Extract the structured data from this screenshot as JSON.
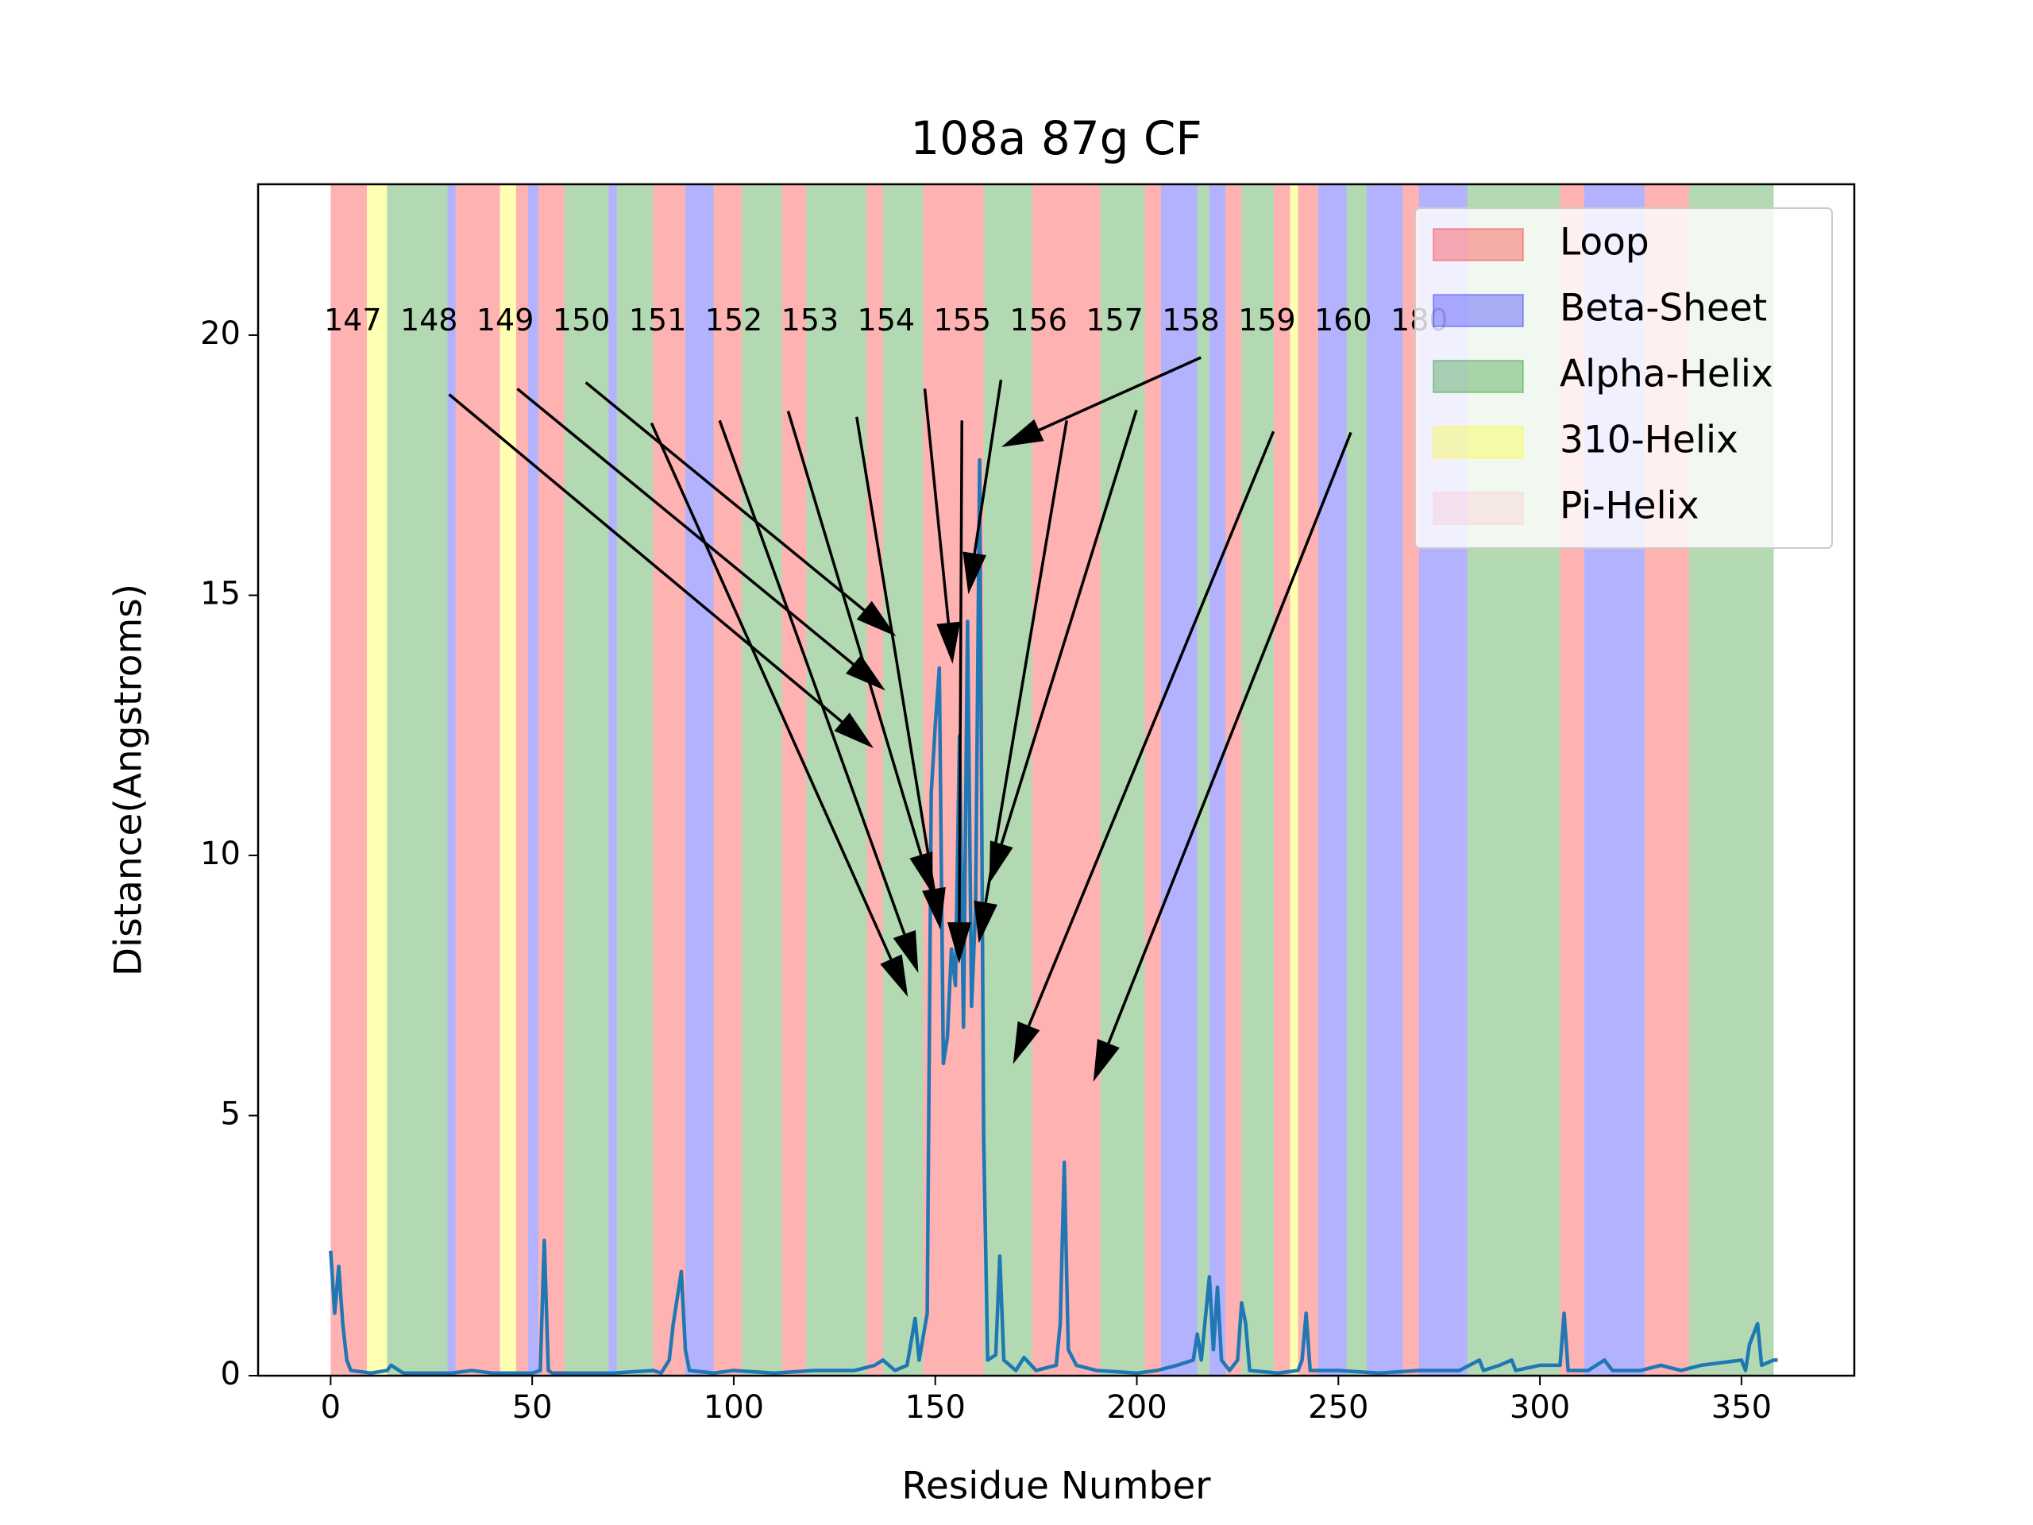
{
  "chart_data": {
    "type": "line",
    "title": "108a 87g CF",
    "x_label": "Residue Number",
    "y_label": "Distance(Angstroms)",
    "xlim": [
      -18,
      378
    ],
    "ylim": [
      0,
      22.9
    ],
    "xticks": [
      0,
      50,
      100,
      150,
      200,
      250,
      300,
      350
    ],
    "yticks": [
      0,
      5,
      10,
      15,
      20
    ],
    "legend_position": "upper right",
    "legend": [
      {
        "name": "Loop",
        "color": "#ff0000"
      },
      {
        "name": "Beta-Sheet",
        "color": "#0000ff"
      },
      {
        "name": "Alpha-Helix",
        "color": "#008000"
      },
      {
        "name": "310-Helix",
        "color": "#ffff00"
      },
      {
        "name": "Pi-Helix",
        "color": "#ffc0cb"
      }
    ],
    "span_alpha": 0.3,
    "spans": [
      {
        "start": 0,
        "end": 9,
        "structure": 0
      },
      {
        "start": 9,
        "end": 14,
        "structure": 3
      },
      {
        "start": 14,
        "end": 29,
        "structure": 2
      },
      {
        "start": 29,
        "end": 31,
        "structure": 1
      },
      {
        "start": 31,
        "end": 42,
        "structure": 0
      },
      {
        "start": 42,
        "end": 46,
        "structure": 3
      },
      {
        "start": 46,
        "end": 49,
        "structure": 0
      },
      {
        "start": 49,
        "end": 51.5,
        "structure": 1
      },
      {
        "start": 51.5,
        "end": 58,
        "structure": 0
      },
      {
        "start": 58,
        "end": 69,
        "structure": 2
      },
      {
        "start": 69,
        "end": 71,
        "structure": 1
      },
      {
        "start": 71,
        "end": 80,
        "structure": 2
      },
      {
        "start": 80,
        "end": 88,
        "structure": 0
      },
      {
        "start": 88,
        "end": 95,
        "structure": 1
      },
      {
        "start": 95,
        "end": 102,
        "structure": 0
      },
      {
        "start": 102,
        "end": 112,
        "structure": 2
      },
      {
        "start": 112,
        "end": 118,
        "structure": 0
      },
      {
        "start": 118,
        "end": 133,
        "structure": 2
      },
      {
        "start": 133,
        "end": 137,
        "structure": 0
      },
      {
        "start": 137,
        "end": 147,
        "structure": 2
      },
      {
        "start": 147,
        "end": 162,
        "structure": 0
      },
      {
        "start": 162,
        "end": 174,
        "structure": 2
      },
      {
        "start": 174,
        "end": 191,
        "structure": 0
      },
      {
        "start": 191,
        "end": 202,
        "structure": 2
      },
      {
        "start": 202,
        "end": 206,
        "structure": 0
      },
      {
        "start": 206,
        "end": 215,
        "structure": 1
      },
      {
        "start": 215,
        "end": 218,
        "structure": 2
      },
      {
        "start": 218,
        "end": 222,
        "structure": 1
      },
      {
        "start": 222,
        "end": 226,
        "structure": 0
      },
      {
        "start": 226,
        "end": 234,
        "structure": 2
      },
      {
        "start": 234,
        "end": 238,
        "structure": 0
      },
      {
        "start": 238,
        "end": 240,
        "structure": 3
      },
      {
        "start": 240,
        "end": 245,
        "structure": 0
      },
      {
        "start": 245,
        "end": 252,
        "structure": 1
      },
      {
        "start": 252,
        "end": 257,
        "structure": 2
      },
      {
        "start": 257,
        "end": 266,
        "structure": 1
      },
      {
        "start": 266,
        "end": 270,
        "structure": 0
      },
      {
        "start": 270,
        "end": 282,
        "structure": 1
      },
      {
        "start": 282,
        "end": 305,
        "structure": 2
      },
      {
        "start": 305,
        "end": 311,
        "structure": 0
      },
      {
        "start": 311,
        "end": 326,
        "structure": 1
      },
      {
        "start": 326,
        "end": 337,
        "structure": 0
      },
      {
        "start": 337,
        "end": 358,
        "structure": 2
      }
    ],
    "series": [
      {
        "name": "Distance",
        "color": "#1f77b4",
        "x": [
          0,
          1,
          2,
          3,
          4,
          5,
          10,
          14,
          15,
          16,
          18,
          30,
          35,
          40,
          50,
          52,
          53,
          54,
          55,
          60,
          70,
          80,
          82,
          84,
          85,
          87,
          88,
          89,
          95,
          100,
          110,
          120,
          130,
          135,
          137,
          140,
          143,
          145,
          146,
          148,
          149,
          150,
          151,
          152,
          153,
          154,
          155,
          156,
          157,
          158,
          159,
          160,
          161,
          162,
          163,
          165,
          166,
          167,
          170,
          172,
          175,
          180,
          181,
          182,
          183,
          185,
          190,
          200,
          205,
          210,
          214,
          215,
          216,
          218,
          219,
          220,
          221,
          223,
          225,
          226,
          227,
          228,
          235,
          240,
          241,
          242,
          243,
          250,
          260,
          270,
          280,
          285,
          286,
          290,
          293,
          294,
          300,
          305,
          306,
          307,
          312,
          316,
          318,
          325,
          330,
          335,
          340,
          350,
          351,
          352,
          354,
          355,
          358,
          359
        ],
        "values": [
          2.4,
          1.2,
          2.1,
          1.0,
          0.3,
          0.1,
          0.05,
          0.1,
          0.2,
          0.15,
          0.05,
          0.05,
          0.1,
          0.05,
          0.05,
          0.1,
          2.6,
          0.1,
          0.05,
          0.05,
          0.05,
          0.1,
          0.05,
          0.3,
          1.0,
          2.0,
          0.5,
          0.1,
          0.05,
          0.1,
          0.05,
          0.1,
          0.1,
          0.2,
          0.3,
          0.1,
          0.2,
          1.1,
          0.3,
          1.2,
          11.2,
          12.5,
          13.6,
          6.0,
          6.5,
          8.2,
          7.5,
          12.3,
          6.7,
          14.5,
          7.1,
          9.0,
          17.6,
          4.6,
          0.3,
          0.4,
          2.3,
          0.3,
          0.1,
          0.35,
          0.1,
          0.2,
          1.0,
          4.1,
          0.5,
          0.2,
          0.1,
          0.05,
          0.1,
          0.2,
          0.3,
          0.8,
          0.3,
          1.9,
          0.5,
          1.7,
          0.3,
          0.1,
          0.3,
          1.4,
          1.0,
          0.1,
          0.05,
          0.1,
          0.3,
          1.2,
          0.1,
          0.1,
          0.05,
          0.1,
          0.1,
          0.3,
          0.1,
          0.2,
          0.3,
          0.1,
          0.2,
          0.2,
          1.2,
          0.1,
          0.1,
          0.3,
          0.1,
          0.1,
          0.2,
          0.1,
          0.2,
          0.3,
          0.1,
          0.6,
          1.0,
          0.2,
          0.3,
          0.3
        ]
      }
    ],
    "annotations": [
      {
        "text": "147",
        "text_x": 5.5,
        "text_y": 20.25,
        "xytext": [
          29.4,
          18.86
        ],
        "xy": [
          134.7,
          12.06
        ]
      },
      {
        "text": "148",
        "text_x": 24.4,
        "text_y": 20.25,
        "xytext": [
          46.3,
          18.97
        ],
        "xy": [
          137.6,
          13.17
        ]
      },
      {
        "text": "149",
        "text_x": 43.3,
        "text_y": 20.25,
        "xytext": [
          63.3,
          19.09
        ],
        "xy": [
          140.3,
          14.21
        ]
      },
      {
        "text": "150",
        "text_x": 62.2,
        "text_y": 20.25,
        "xytext": [
          79.6,
          18.31
        ],
        "xy": [
          143.2,
          7.28
        ]
      },
      {
        "text": "151",
        "text_x": 81.1,
        "text_y": 20.25,
        "xytext": [
          96.5,
          18.36
        ],
        "xy": [
          145.8,
          7.74
        ]
      },
      {
        "text": "152",
        "text_x": 100,
        "text_y": 20.25,
        "xytext": [
          113.5,
          18.54
        ],
        "xy": [
          149.4,
          9.25
        ]
      },
      {
        "text": "153",
        "text_x": 118.9,
        "text_y": 20.25,
        "xytext": [
          130.5,
          18.43
        ],
        "xy": [
          151.3,
          8.57
        ]
      },
      {
        "text": "154",
        "text_x": 137.8,
        "text_y": 20.25,
        "xytext": [
          147.4,
          18.97
        ],
        "xy": [
          154.3,
          13.68
        ]
      },
      {
        "text": "155",
        "text_x": 156.7,
        "text_y": 20.25,
        "xytext": [
          156.6,
          18.36
        ],
        "xy": [
          155.9,
          7.92
        ]
      },
      {
        "text": "156",
        "text_x": 175.6,
        "text_y": 20.25,
        "xytext": [
          166.3,
          19.14
        ],
        "xy": [
          158.2,
          15.02
        ]
      },
      {
        "text": "157",
        "text_x": 194.5,
        "text_y": 20.25,
        "xytext": [
          215.9,
          19.57
        ],
        "xy": [
          166.4,
          17.85
        ]
      },
      {
        "text": "158",
        "text_x": 213.4,
        "text_y": 20.25,
        "xytext": [
          182.6,
          18.36
        ],
        "xy": [
          160.8,
          8.31
        ]
      },
      {
        "text": "159",
        "text_x": 232.3,
        "text_y": 20.25,
        "xytext": [
          199.9,
          18.56
        ],
        "xy": [
          163.4,
          9.46
        ]
      },
      {
        "text": "160",
        "text_x": 251.2,
        "text_y": 20.25,
        "xytext": [
          233.9,
          18.15
        ],
        "xy": [
          169.3,
          5.99
        ]
      },
      {
        "text": "180",
        "text_x": 270.1,
        "text_y": 20.25,
        "xytext": [
          253.1,
          18.13
        ],
        "xy": [
          189.2,
          5.65
        ]
      }
    ]
  }
}
